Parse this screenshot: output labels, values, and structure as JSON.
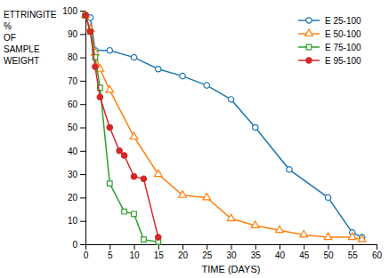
{
  "chart_data": {
    "type": "line",
    "xlabel": "TIME (DAYS)",
    "ylabel": "ETTRINGITE\n%\nOF\nSAMPLE\nWEIGHT",
    "xlim": [
      0,
      60
    ],
    "ylim": [
      0,
      100
    ],
    "xticks": [
      0,
      5,
      10,
      15,
      20,
      25,
      30,
      35,
      40,
      45,
      50,
      55,
      60
    ],
    "yticks": [
      0,
      10,
      20,
      30,
      40,
      50,
      60,
      70,
      80,
      90,
      100
    ],
    "grid": false,
    "legend": "upper right",
    "series": [
      {
        "name": "E 25-100",
        "marker": "circle-open",
        "x": [
          0,
          1,
          2,
          5,
          10,
          15,
          20,
          25,
          30,
          35,
          42,
          50,
          55,
          57
        ],
        "values": [
          98,
          97,
          83,
          83,
          80,
          75,
          72,
          68,
          62,
          50,
          32,
          20,
          5,
          3
        ]
      },
      {
        "name": "E 50-100",
        "marker": "triangle-open",
        "x": [
          0,
          1,
          2,
          3,
          5,
          10,
          15,
          20,
          25,
          30,
          35,
          40,
          45,
          50,
          55,
          57
        ],
        "values": [
          98,
          92,
          82,
          75,
          66,
          46,
          30,
          21,
          20,
          11,
          8,
          6,
          4,
          3,
          3,
          2
        ]
      },
      {
        "name": "E 75-100",
        "marker": "square-open",
        "x": [
          0,
          1,
          2,
          3,
          5,
          8,
          10,
          12,
          15
        ],
        "values": [
          98,
          91,
          80,
          67,
          26,
          14,
          13,
          2,
          1
        ]
      },
      {
        "name": "E 95-100",
        "marker": "circle",
        "x": [
          0,
          1,
          2,
          3,
          5,
          7,
          8,
          10,
          12,
          15
        ],
        "values": [
          98,
          91,
          76,
          63,
          50,
          40,
          38,
          29,
          28,
          3
        ]
      }
    ]
  }
}
